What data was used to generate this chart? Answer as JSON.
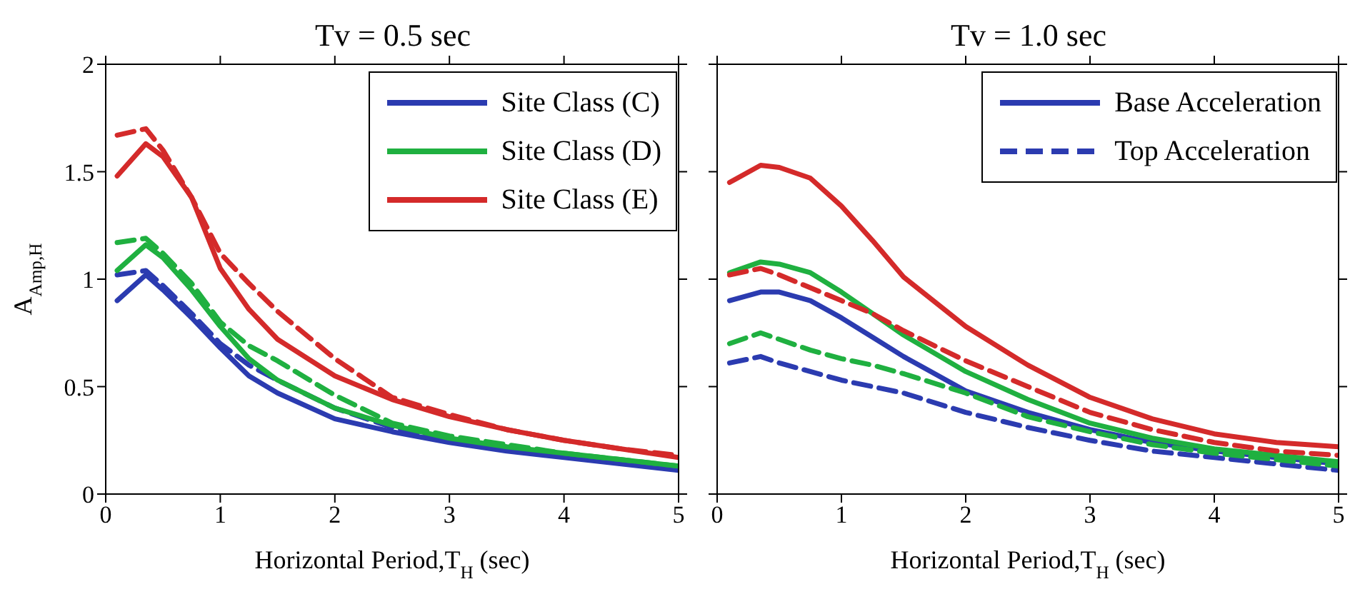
{
  "chart_data": [
    {
      "type": "line",
      "title": "Tv = 0.5 sec",
      "xlabel": "Horizontal Period,T$_{H}$ (sec)",
      "ylabel": "A$_{Amp,H}$",
      "x": [
        0.1,
        0.35,
        0.5,
        0.75,
        1,
        1.25,
        1.5,
        2,
        2.5,
        3,
        3.5,
        4,
        4.5,
        5
      ],
      "xlim": [
        0,
        5
      ],
      "xticks": [
        0,
        1,
        2,
        3,
        4,
        5
      ],
      "ylim": [
        0,
        2
      ],
      "yticks": [
        0,
        0.5,
        1,
        1.5,
        2
      ],
      "legend": "top right",
      "marker": "none",
      "series": [
        {
          "name": "Site Class (C)",
          "color": "#2b3bb0",
          "line_style": "solid",
          "values": [
            0.9,
            1.02,
            0.95,
            0.82,
            0.68,
            0.55,
            0.47,
            0.35,
            0.29,
            0.24,
            0.2,
            0.17,
            0.14,
            0.11
          ]
        },
        {
          "color": "#2b3bb0",
          "line_style": "dashed",
          "values": [
            1.02,
            1.04,
            0.97,
            0.84,
            0.7,
            0.6,
            0.53,
            0.4,
            0.31,
            0.25,
            0.21,
            0.18,
            0.15,
            0.12
          ]
        },
        {
          "name": "Site Class (D)",
          "color": "#1fb040",
          "line_style": "solid",
          "values": [
            1.04,
            1.16,
            1.1,
            0.95,
            0.78,
            0.63,
            0.53,
            0.4,
            0.32,
            0.26,
            0.22,
            0.19,
            0.16,
            0.13
          ]
        },
        {
          "color": "#1fb040",
          "line_style": "dashed",
          "values": [
            1.17,
            1.19,
            1.12,
            0.98,
            0.8,
            0.69,
            0.62,
            0.46,
            0.33,
            0.27,
            0.23,
            0.19,
            0.16,
            0.13
          ]
        },
        {
          "name": "Site Class (E)",
          "color": "#d42a2a",
          "line_style": "solid",
          "values": [
            1.48,
            1.63,
            1.57,
            1.38,
            1.05,
            0.86,
            0.72,
            0.55,
            0.44,
            0.36,
            0.3,
            0.25,
            0.21,
            0.17
          ]
        },
        {
          "color": "#d42a2a",
          "line_style": "dashed",
          "values": [
            1.67,
            1.7,
            1.6,
            1.38,
            1.12,
            0.98,
            0.85,
            0.63,
            0.45,
            0.37,
            0.3,
            0.25,
            0.21,
            0.18
          ]
        }
      ]
    },
    {
      "type": "line",
      "title": "Tv = 1.0 sec",
      "xlabel": "Horizontal Period,T$_{H}$ (sec)",
      "x": [
        0.1,
        0.35,
        0.5,
        0.75,
        1,
        1.25,
        1.5,
        2,
        2.5,
        3,
        3.5,
        4,
        4.5,
        5
      ],
      "xlim": [
        0,
        5
      ],
      "xticks": [
        0,
        1,
        2,
        3,
        4,
        5
      ],
      "ylim": [
        0,
        2
      ],
      "yticks": [
        0,
        0.5,
        1,
        1.5,
        2
      ],
      "tick_labels": "x",
      "legend": "top right",
      "marker": "none",
      "series": [
        {
          "name": "Base Acceleration",
          "color": "#2b3bb0",
          "line_style": "solid",
          "values": [
            0.9,
            0.94,
            0.94,
            0.9,
            0.82,
            0.73,
            0.64,
            0.48,
            0.38,
            0.3,
            0.24,
            0.2,
            0.17,
            0.14
          ]
        },
        {
          "name": "Top Acceleration",
          "color": "#2b3bb0",
          "line_style": "dashed",
          "values": [
            0.61,
            0.64,
            0.61,
            0.57,
            0.53,
            0.5,
            0.47,
            0.38,
            0.31,
            0.25,
            0.2,
            0.17,
            0.14,
            0.11
          ]
        },
        {
          "color": "#1fb040",
          "line_style": "solid",
          "values": [
            1.03,
            1.08,
            1.07,
            1.03,
            0.94,
            0.84,
            0.74,
            0.57,
            0.44,
            0.33,
            0.26,
            0.21,
            0.18,
            0.15
          ]
        },
        {
          "color": "#1fb040",
          "line_style": "dashed",
          "values": [
            0.7,
            0.75,
            0.72,
            0.67,
            0.63,
            0.6,
            0.56,
            0.47,
            0.36,
            0.29,
            0.23,
            0.19,
            0.16,
            0.13
          ]
        },
        {
          "color": "#d42a2a",
          "line_style": "solid",
          "values": [
            1.45,
            1.53,
            1.52,
            1.47,
            1.34,
            1.18,
            1.01,
            0.78,
            0.6,
            0.45,
            0.35,
            0.28,
            0.24,
            0.22
          ]
        },
        {
          "color": "#d42a2a",
          "line_style": "dashed",
          "values": [
            1.02,
            1.05,
            1.02,
            0.96,
            0.9,
            0.84,
            0.76,
            0.62,
            0.5,
            0.38,
            0.3,
            0.24,
            0.2,
            0.18
          ]
        }
      ]
    }
  ]
}
